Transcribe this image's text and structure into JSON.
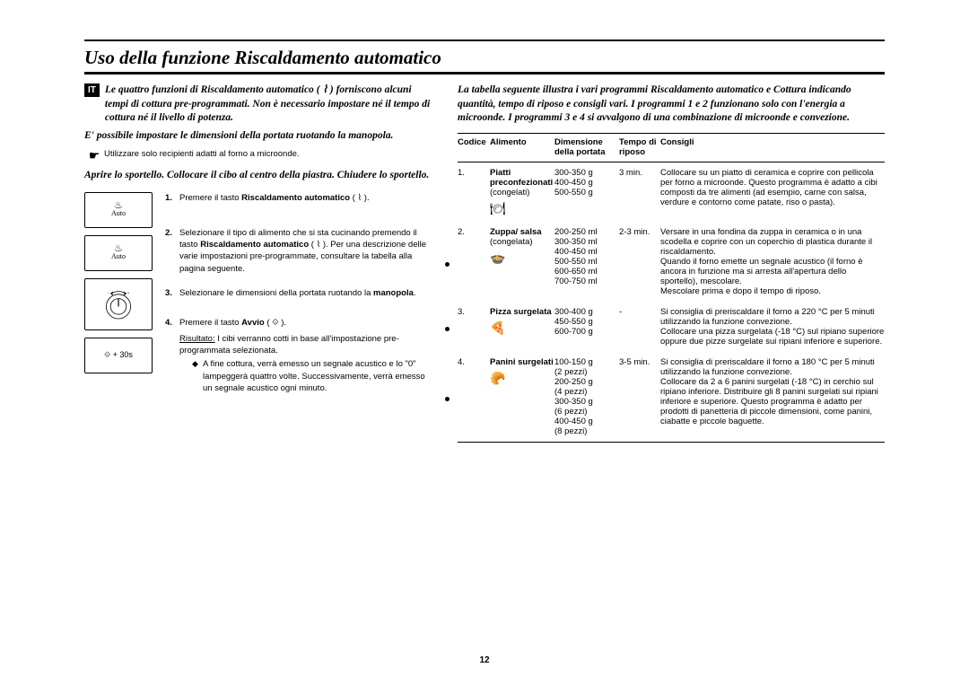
{
  "title": "Uso della funzione Riscaldamento automatico",
  "lang_code": "IT",
  "page_number": "12",
  "left": {
    "intro": "Le quattro funzioni di Riscaldamento automatico ( ⌇ ) forniscono alcuni tempi di cottura pre-programmati. Non è necessario impostare né il tempo di cottura né il livello di potenza.",
    "intro2": "E' possibile impostare le dimensioni della portata ruotando la manopola.",
    "note": "Utilizzare solo recipienti adatti al forno a microonde.",
    "sub_intro": "Aprire lo sportello. Collocare il cibo al centro della piastra. Chiudere lo sportello.",
    "icon_labels": {
      "auto": "Auto",
      "start": "+ 30s"
    },
    "steps": [
      {
        "n": "1.",
        "txt": "Premere il tasto <b>Riscaldamento automatico</b> ( ⌇ )."
      },
      {
        "n": "2.",
        "txt": "Selezionare il tipo di alimento che si sta cucinando premendo il tasto <b>Riscaldamento automatico</b> ( ⌇ ). Per una descrizione delle varie impostazioni pre-programmate, consultare la tabella alla pagina seguente."
      },
      {
        "n": "3.",
        "txt": "Selezionare le dimensioni della portata ruotando la <b>manopola</b>."
      },
      {
        "n": "4.",
        "txt": "Premere il tasto <b>Avvio</b> ( ⟐ )."
      }
    ],
    "result_label": "Risultato:",
    "result_text": "I cibi verranno cotti in base all'impostazione pre-programmata selezionata.",
    "result_sub": "A fine cottura, verrà emesso un segnale acustico e lo \"0\" lampeggerà quattro volte. Successivamente, verrà emesso un segnale acustico ogni minuto."
  },
  "right": {
    "intro": "La tabella seguente illustra i vari programmi Riscaldamento automatico e Cottura indicando quantità, tempo di riposo e consigli vari. I programmi 1 e 2 funzionano solo con l'energia a microonde. I programmi 3 e 4 si avvalgono di una combinazione di microonde e convezione.",
    "headers": {
      "code": "Codice",
      "food": "Alimento",
      "size": "Dimensione della portata",
      "time": "Tempo di riposo",
      "tip": "Consigli"
    },
    "rows": [
      {
        "code": "1.",
        "food_bold": "Piatti preconfezionati",
        "food_extra": "(congelati)",
        "icon": "🍽",
        "sizes": "300-350 g\n400-450 g\n500-550 g",
        "time": "3 min.",
        "tip": "Collocare su un piatto di ceramica e coprire con pellicola per forno a microonde. Questo programma è adatto a cibi composti da tre alimenti (ad esempio, carne con salsa, verdure e contorno come patate, riso o pasta)."
      },
      {
        "code": "2.",
        "food_bold": "Zuppa/ salsa",
        "food_extra": "(congelata)",
        "icon": "🍲",
        "sizes": "200-250 ml\n300-350 ml\n400-450 ml\n500-550 ml\n600-650 ml\n700-750 ml",
        "time": "2-3 min.",
        "tip": "Versare in una fondina da zuppa in ceramica o in una scodella e coprire con un coperchio di plastica durante il riscaldamento.\nQuando il forno emette un segnale acustico (il forno è ancora in funzione ma si arresta all'apertura dello sportello), mescolare.\nMescolare prima e dopo il tempo di riposo."
      },
      {
        "code": "3.",
        "food_bold": "Pizza surgelata",
        "food_extra": "",
        "icon": "🍕",
        "sizes": "300-400 g\n450-550 g\n600-700 g",
        "time": "-",
        "tip": "Si consiglia di preriscaldare il forno a 220 °C per 5 minuti utilizzando la funzione convezione.\nCollocare una pizza surgelata (-18 °C) sul ripiano superiore oppure due pizze surgelate sui ripiani inferiore e superiore."
      },
      {
        "code": "4.",
        "food_bold": "Panini surgelati",
        "food_extra": "",
        "icon": "🥐",
        "sizes": "100-150 g\n(2 pezzi)\n200-250 g\n(4 pezzi)\n300-350 g\n(6 pezzi)\n400-450 g\n(8 pezzi)",
        "time": "3-5 min.",
        "tip": "Si consiglia di preriscaldare il forno a 180 °C per 5 minuti utilizzando la funzione convezione.\nCollocare da 2 a 6 panini surgelati (-18 °C) in cerchio sul ripiano inferiore. Distribuire gli 8 panini surgelati sui ripiani inferiore e superiore. Questo programma è adatto per prodotti di panetteria di piccole dimensioni, come panini, ciabatte e piccole baguette."
      }
    ]
  }
}
